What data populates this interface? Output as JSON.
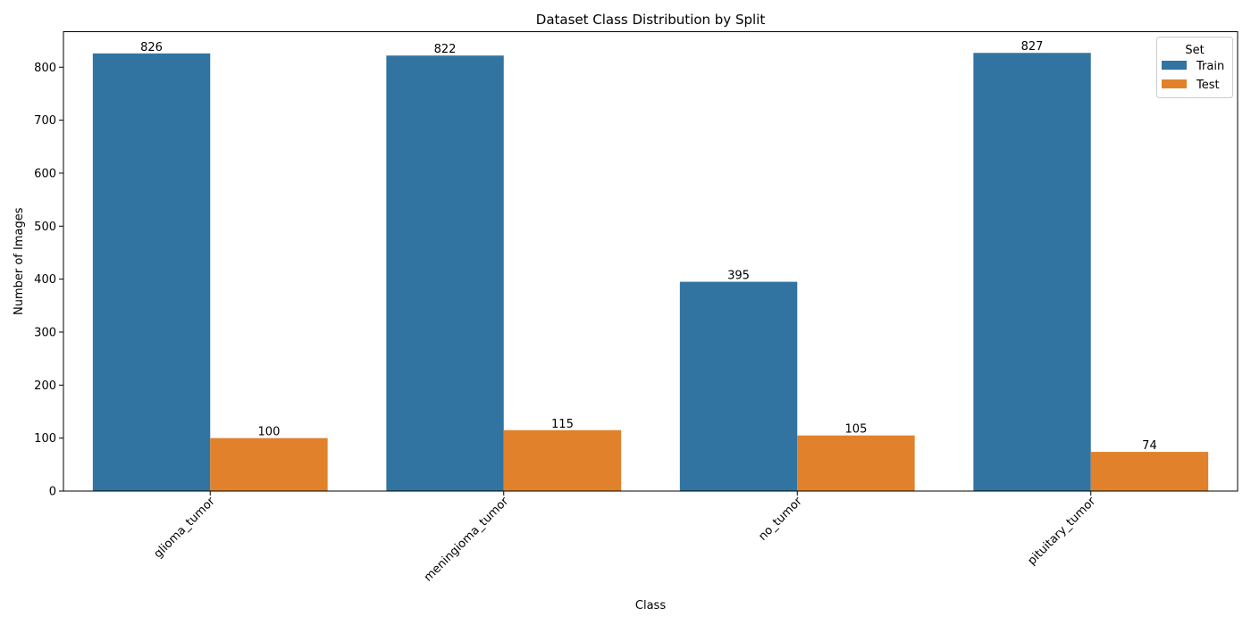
{
  "chart_data": {
    "type": "bar",
    "title": "Dataset Class Distribution by Split",
    "xlabel": "Class",
    "ylabel": "Number of Images",
    "categories": [
      "glioma_tumor",
      "meningioma_tumor",
      "no_tumor",
      "pituitary_tumor"
    ],
    "series": [
      {
        "name": "Train",
        "color": "#3274a1",
        "values": [
          826,
          822,
          395,
          827
        ]
      },
      {
        "name": "Test",
        "color": "#e1812c",
        "values": [
          100,
          115,
          105,
          74
        ]
      }
    ],
    "ylim": [
      0,
      867
    ],
    "yticks": [
      0,
      100,
      200,
      300,
      400,
      500,
      600,
      700,
      800
    ],
    "grid": false,
    "legend": {
      "title": "Set",
      "position": "top-right"
    },
    "xtick_rotation": 45
  }
}
